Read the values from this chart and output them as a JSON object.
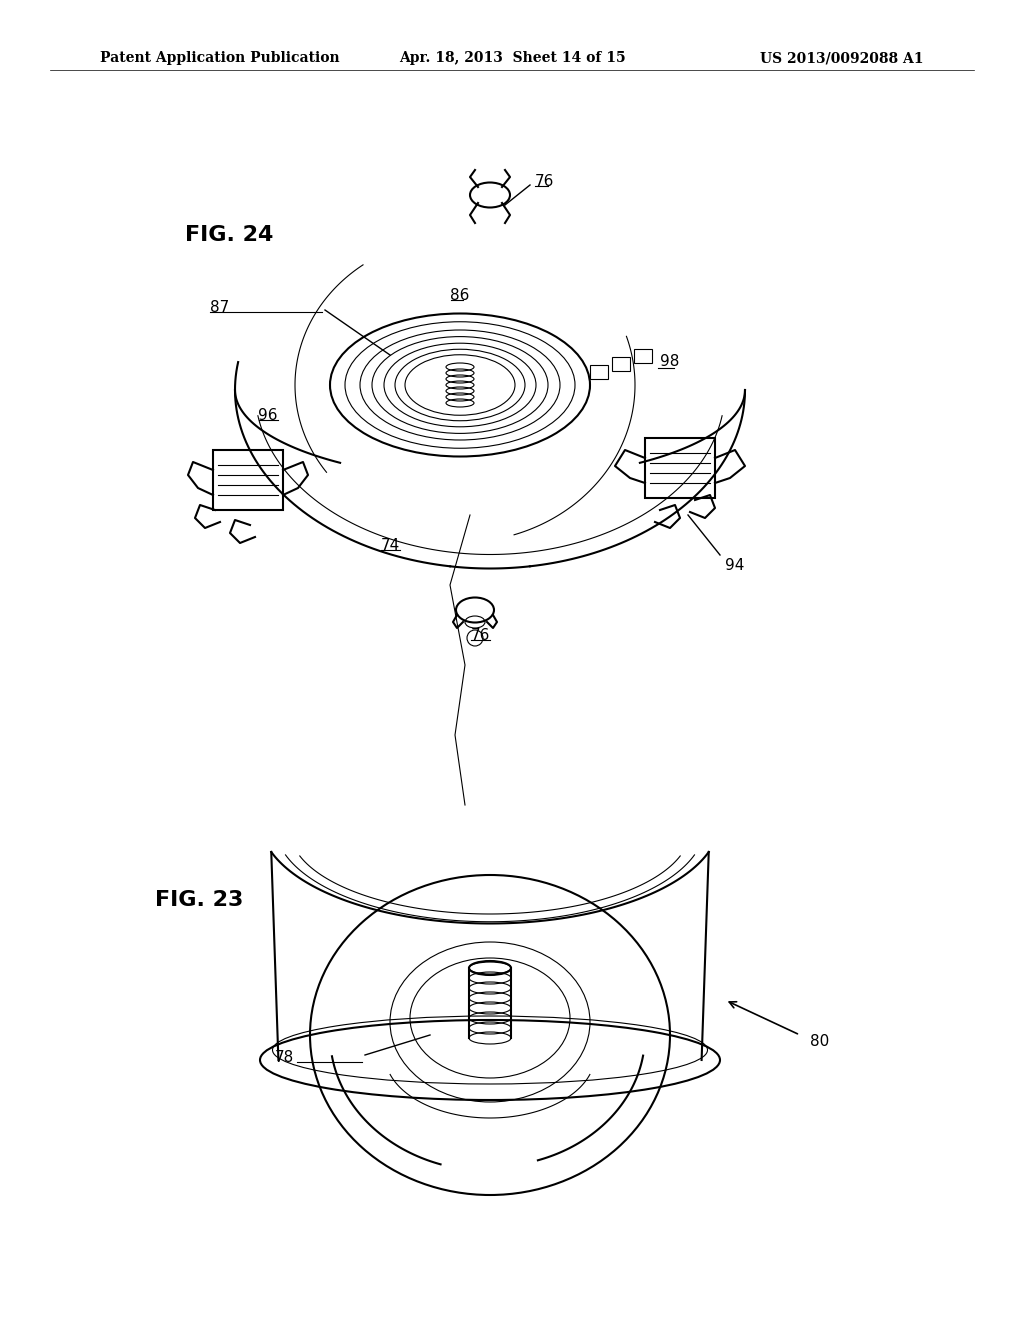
{
  "background_color": "#ffffff",
  "header_left": "Patent Application Publication",
  "header_center": "Apr. 18, 2013  Sheet 14 of 15",
  "header_right": "US 2013/0092088 A1",
  "fig24_label": "FIG. 24",
  "fig23_label": "FIG. 23",
  "line_color": "#000000",
  "text_color": "#000000",
  "header_fontsize": 10,
  "annotation_fontsize": 11,
  "fig_label_fontsize": 16
}
